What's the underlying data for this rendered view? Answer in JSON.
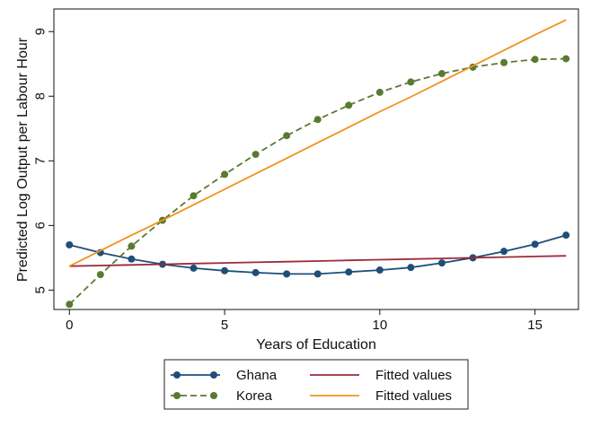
{
  "chart_data": {
    "type": "line",
    "title": "",
    "xlabel": "Years of Education",
    "ylabel": "Predicted Log Output per Labour Hour",
    "xlim": [
      -0.5,
      16.4
    ],
    "ylim": [
      4.7,
      9.35
    ],
    "xticks": [
      0,
      5,
      10,
      15
    ],
    "yticks": [
      5,
      6,
      7,
      8,
      9
    ],
    "grid": false,
    "legend_position": "bottom",
    "x": [
      0,
      1,
      2,
      3,
      4,
      5,
      6,
      7,
      8,
      9,
      10,
      11,
      12,
      13,
      14,
      15,
      16
    ],
    "series": [
      {
        "name": "Ghana",
        "color": "#1f4e79",
        "style": "solid",
        "marker": "circle",
        "values": [
          5.7,
          5.58,
          5.48,
          5.4,
          5.34,
          5.3,
          5.27,
          5.25,
          5.25,
          5.28,
          5.31,
          5.35,
          5.42,
          5.5,
          5.6,
          5.71,
          5.85
        ]
      },
      {
        "name": "Fitted values",
        "color": "#9c2a3c",
        "style": "solid",
        "marker": "none",
        "values": [
          5.37,
          5.38,
          5.39,
          5.4,
          5.41,
          5.42,
          5.43,
          5.44,
          5.45,
          5.46,
          5.47,
          5.48,
          5.49,
          5.5,
          5.51,
          5.52,
          5.53
        ]
      },
      {
        "name": "Korea",
        "color": "#5a7a30",
        "style": "dashed",
        "marker": "circle",
        "values": [
          4.78,
          5.24,
          5.68,
          6.08,
          6.46,
          6.79,
          7.1,
          7.39,
          7.64,
          7.86,
          8.06,
          8.22,
          8.35,
          8.45,
          8.52,
          8.57,
          8.58
        ]
      },
      {
        "name": "Fitted values",
        "color": "#f0921f",
        "style": "solid",
        "marker": "none",
        "values": [
          5.37,
          5.61,
          5.85,
          6.08,
          6.32,
          6.56,
          6.8,
          7.04,
          7.28,
          7.52,
          7.76,
          7.99,
          8.23,
          8.47,
          8.71,
          8.95,
          9.18
        ]
      }
    ]
  }
}
